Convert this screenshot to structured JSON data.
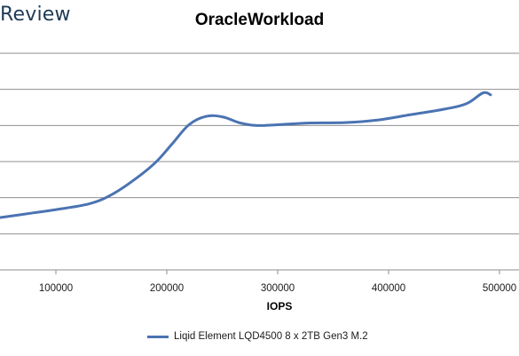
{
  "brand": {
    "text": "Review"
  },
  "chart_data": {
    "type": "line",
    "title": "OracleWorkload",
    "xlabel": "IOPS",
    "ylabel": "",
    "xlim": [
      50000,
      510000
    ],
    "ylim": [
      0,
      6
    ],
    "x_ticks": [
      100000,
      200000,
      300000,
      400000,
      500000
    ],
    "y_gridlines": [
      1,
      2,
      3,
      4,
      5
    ],
    "grid": true,
    "legend": "bottom",
    "series": [
      {
        "name": "Liqid Element LQD4500 8 x 2TB Gen3 M.2",
        "color": "#4a73b2",
        "x": [
          50000,
          80000,
          100000,
          130000,
          150000,
          170000,
          190000,
          205000,
          220000,
          235000,
          250000,
          265000,
          280000,
          300000,
          330000,
          360000,
          390000,
          420000,
          450000,
          470000,
          485000,
          492000
        ],
        "y": [
          1.45,
          1.58,
          1.67,
          1.83,
          2.08,
          2.48,
          2.98,
          3.5,
          4.02,
          4.25,
          4.24,
          4.08,
          4.0,
          4.02,
          4.07,
          4.08,
          4.15,
          4.3,
          4.45,
          4.6,
          4.9,
          4.85
        ]
      }
    ]
  }
}
